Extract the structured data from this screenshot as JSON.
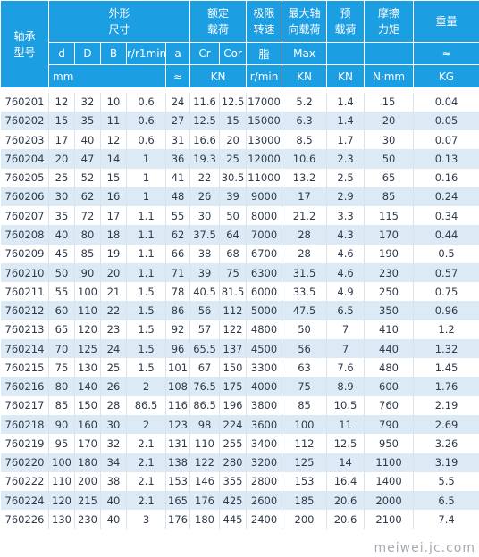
{
  "header": {
    "model_line1": "轴承",
    "model_line2": "型号",
    "dimensions_line1": "外形",
    "dimensions_line2": "尺寸",
    "rated_load_line1": "额定",
    "rated_load_line2": "载荷",
    "limit_speed_line1": "极限",
    "limit_speed_line2": "转速",
    "max_axial_line1": "最大轴",
    "max_axial_line2": "向载荷",
    "preload_line1": "预",
    "preload_line2": "载荷",
    "friction_line1": "摩擦",
    "friction_line2": "力矩",
    "weight": "重量"
  },
  "subheader": {
    "d": "d",
    "D": "D",
    "B": "B",
    "r": "r/r1min",
    "a": "a",
    "cr": "Cr",
    "cor": "Cor",
    "lube": "脂",
    "max": "Max",
    "weight_approx": "≈"
  },
  "units": {
    "mm": "mm",
    "approx": "≈",
    "kn_rated": "KN",
    "rmin": "r/min",
    "kn_axial": "KN",
    "kn_preload": "KN",
    "nmm": "N·mm",
    "kg": "KG"
  },
  "rows": [
    [
      "760201",
      "12",
      "32",
      "10",
      "0.6",
      "24",
      "11.6",
      "12.5",
      "17000",
      "5.2",
      "1.4",
      "15",
      "0.04"
    ],
    [
      "760202",
      "15",
      "35",
      "11",
      "0.6",
      "27",
      "12.5",
      "15",
      "15000",
      "6.3",
      "1.4",
      "20",
      "0.05"
    ],
    [
      "760203",
      "17",
      "40",
      "12",
      "0.6",
      "31",
      "16.6",
      "20",
      "13000",
      "8.5",
      "1.7",
      "30",
      "0.07"
    ],
    [
      "760204",
      "20",
      "47",
      "14",
      "1",
      "36",
      "19.3",
      "25",
      "12000",
      "10.6",
      "2.3",
      "50",
      "0.13"
    ],
    [
      "760205",
      "25",
      "52",
      "15",
      "1",
      "41",
      "22",
      "30.5",
      "11000",
      "13.2",
      "2.5",
      "65",
      "0.16"
    ],
    [
      "760206",
      "30",
      "62",
      "16",
      "1",
      "48",
      "26",
      "39",
      "9000",
      "17",
      "2.9",
      "85",
      "0.24"
    ],
    [
      "760207",
      "35",
      "72",
      "17",
      "1.1",
      "55",
      "30",
      "50",
      "8000",
      "21.2",
      "3.3",
      "115",
      "0.34"
    ],
    [
      "760208",
      "40",
      "80",
      "18",
      "1.1",
      "62",
      "37.5",
      "64",
      "7000",
      "28",
      "4.3",
      "170",
      "0.44"
    ],
    [
      "760209",
      "45",
      "85",
      "19",
      "1.1",
      "66",
      "38",
      "68",
      "6700",
      "28",
      "4.6",
      "190",
      "0.5"
    ],
    [
      "760210",
      "50",
      "90",
      "20",
      "1.1",
      "71",
      "39",
      "75",
      "6300",
      "31.5",
      "4.6",
      "230",
      "0.57"
    ],
    [
      "760211",
      "55",
      "100",
      "21",
      "1.5",
      "78",
      "40.5",
      "81.5",
      "6000",
      "33.5",
      "4.9",
      "250",
      "0.75"
    ],
    [
      "760212",
      "60",
      "110",
      "22",
      "1.5",
      "86",
      "56",
      "112",
      "5000",
      "47.5",
      "6.5",
      "350",
      "0.96"
    ],
    [
      "760213",
      "65",
      "120",
      "23",
      "1.5",
      "92",
      "57",
      "122",
      "4800",
      "50",
      "7",
      "410",
      "1.2"
    ],
    [
      "760214",
      "70",
      "125",
      "24",
      "1.5",
      "96",
      "65.5",
      "137",
      "4500",
      "56",
      "7",
      "440",
      "1.32"
    ],
    [
      "760215",
      "75",
      "130",
      "25",
      "1.5",
      "101",
      "67",
      "150",
      "3300",
      "63",
      "7.6",
      "480",
      "1.45"
    ],
    [
      "760216",
      "80",
      "140",
      "26",
      "2",
      "108",
      "76.5",
      "175",
      "4000",
      "75",
      "8.9",
      "600",
      "1.76"
    ],
    [
      "760217",
      "85",
      "150",
      "28",
      "86.5",
      "116",
      "86.5",
      "196",
      "3800",
      "85",
      "10.5",
      "760",
      "2.19"
    ],
    [
      "760218",
      "90",
      "160",
      "30",
      "2",
      "123",
      "98",
      "224",
      "3600",
      "100",
      "11",
      "790",
      "2.69"
    ],
    [
      "760219",
      "95",
      "170",
      "32",
      "2.1",
      "131",
      "110",
      "255",
      "3400",
      "112",
      "12.5",
      "950",
      "3.26"
    ],
    [
      "760220",
      "100",
      "180",
      "34",
      "2.1",
      "138",
      "122",
      "280",
      "3200",
      "125",
      "14",
      "1100",
      "3.19"
    ],
    [
      "760222",
      "110",
      "200",
      "38",
      "2.1",
      "153",
      "146",
      "355",
      "2800",
      "153",
      "16.4",
      "1400",
      "5.5"
    ],
    [
      "760224",
      "120",
      "215",
      "40",
      "2.1",
      "165",
      "176",
      "425",
      "2600",
      "185",
      "20.6",
      "2000",
      "6.5"
    ],
    [
      "760226",
      "130",
      "230",
      "40",
      "3",
      "176",
      "180",
      "445",
      "2400",
      "200",
      "20.6",
      "2100",
      "7.4"
    ]
  ],
  "watermark": "meiwei.jc.com"
}
